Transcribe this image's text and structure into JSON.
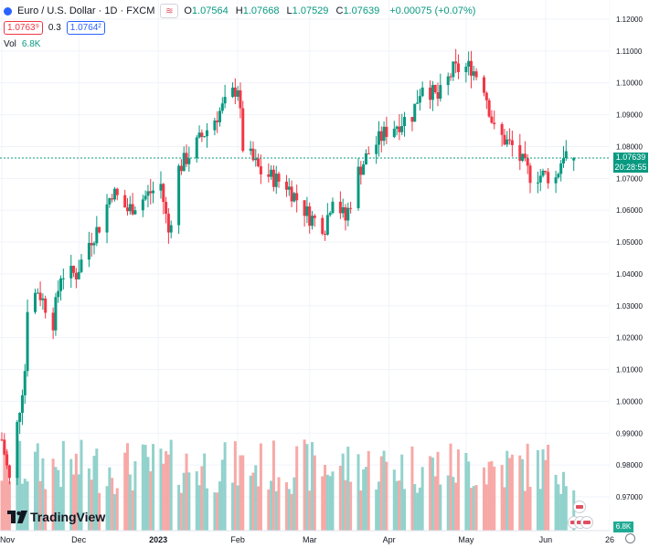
{
  "header": {
    "symbol": "Euro / U.S. Dollar · 1D · FXCM",
    "ohlc": [
      {
        "label": "O",
        "value": "1.07564"
      },
      {
        "label": "H",
        "value": "1.07668"
      },
      {
        "label": "L",
        "value": "1.07529"
      },
      {
        "label": "C",
        "value": "1.07639"
      }
    ],
    "change": "+0.00075 (+0.07%)",
    "bid": "1.0763⁹",
    "spread": "0.3",
    "ask": "1.0764²",
    "compare_icon": "≋"
  },
  "volume": {
    "label": "Vol",
    "value": "6.8K",
    "badge": "6.8K"
  },
  "price_label": {
    "price": "1.07639",
    "countdown": "20:28:55"
  },
  "brand": "TradingView",
  "colors": {
    "up": "#089981",
    "down": "#f23645",
    "vol_up": "#92d2cc",
    "vol_down": "#f7a9a7",
    "last_price": "#089981"
  },
  "chart_data": {
    "type": "candlestick",
    "x_ticks": [
      "Nov",
      "Dec",
      "2023",
      "Feb",
      "Mar",
      "Apr",
      "May",
      "Jun",
      "26"
    ],
    "y_ticks": [
      "1.12000",
      "1.11000",
      "1.10000",
      "1.09000",
      "1.08000",
      "1.07000",
      "1.06000",
      "1.05000",
      "1.04000",
      "1.03000",
      "1.02000",
      "1.01000",
      "1.00000",
      "0.99000",
      "0.98000",
      "0.97000"
    ],
    "ylim": [
      0.962,
      1.122
    ],
    "last_price": 1.07639,
    "waypoints": [
      [
        "2022-11-01",
        0.988
      ],
      [
        "2022-11-04",
        0.975
      ],
      [
        "2022-11-10",
        1.01
      ],
      [
        "2022-11-11",
        1.03
      ],
      [
        "2022-11-15",
        1.035
      ],
      [
        "2022-11-21",
        1.025
      ],
      [
        "2022-11-24",
        1.04
      ],
      [
        "2022-11-30",
        1.04
      ],
      [
        "2022-12-05",
        1.05
      ],
      [
        "2022-12-09",
        1.055
      ],
      [
        "2022-12-14",
        1.066
      ],
      [
        "2022-12-20",
        1.06
      ],
      [
        "2022-12-28",
        1.065
      ],
      [
        "2023-01-02",
        1.068
      ],
      [
        "2023-01-05",
        1.053
      ],
      [
        "2023-01-09",
        1.073
      ],
      [
        "2023-01-17",
        1.082
      ],
      [
        "2023-01-25",
        1.091
      ],
      [
        "2023-02-01",
        1.099
      ],
      [
        "2023-02-03",
        1.08
      ],
      [
        "2023-02-10",
        1.072
      ],
      [
        "2023-02-20",
        1.068
      ],
      [
        "2023-03-01",
        1.058
      ],
      [
        "2023-03-07",
        1.055
      ],
      [
        "2023-03-10",
        1.065
      ],
      [
        "2023-03-15",
        1.057
      ],
      [
        "2023-03-20",
        1.072
      ],
      [
        "2023-03-24",
        1.078
      ],
      [
        "2023-03-31",
        1.085
      ],
      [
        "2023-04-10",
        1.09
      ],
      [
        "2023-04-14",
        1.1
      ],
      [
        "2023-04-20",
        1.095
      ],
      [
        "2023-04-26",
        1.104
      ],
      [
        "2023-05-03",
        1.105
      ],
      [
        "2023-05-08",
        1.099
      ],
      [
        "2023-05-12",
        1.085
      ],
      [
        "2023-05-19",
        1.08
      ],
      [
        "2023-05-26",
        1.071
      ],
      [
        "2023-06-01",
        1.071
      ],
      [
        "2023-06-05",
        1.07
      ],
      [
        "2023-06-08",
        1.078
      ],
      [
        "2023-06-12",
        1.0764
      ]
    ]
  }
}
